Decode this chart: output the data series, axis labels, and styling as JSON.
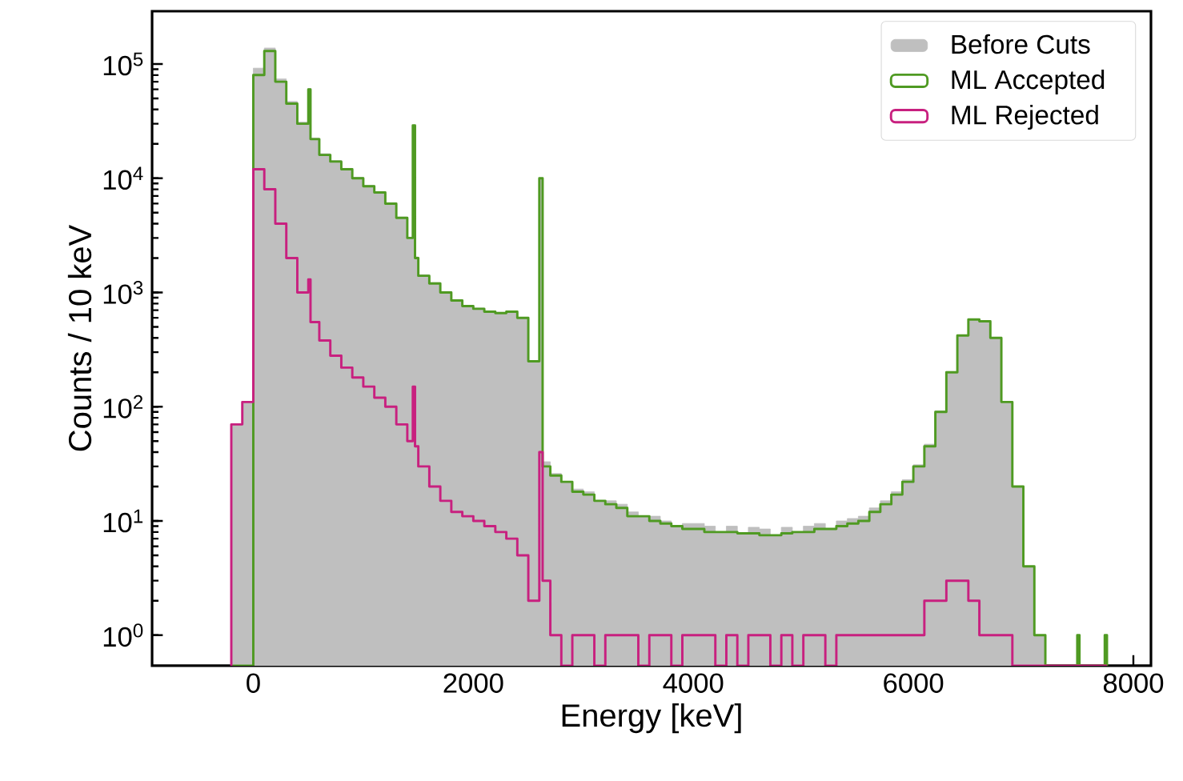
{
  "chart_data": {
    "type": "histogram",
    "xlabel": "Energy [keV]",
    "ylabel": "Counts / 10 keV",
    "log": true,
    "legend": "top right",
    "xlim": [
      -920,
      8160
    ],
    "ylim": [
      0.54,
      290000
    ],
    "xticks": [
      0,
      2000,
      4000,
      6000,
      8000
    ],
    "yticks": [
      {
        "value": 1,
        "label": "10$^{0}$"
      },
      {
        "value": 10,
        "label": "10$^{1}$"
      },
      {
        "value": 100,
        "label": "10$^{2}$"
      },
      {
        "value": 1000,
        "label": "10$^{3}$"
      },
      {
        "value": 10000,
        "label": "10$^{4}$"
      },
      {
        "value": 100000,
        "label": "10$^{5}$"
      }
    ],
    "bins": [
      -200,
      -100,
      0,
      100,
      200,
      300,
      400,
      500,
      520,
      600,
      700,
      800,
      900,
      1000,
      1100,
      1200,
      1300,
      1400,
      1450,
      1470,
      1500,
      1600,
      1700,
      1800,
      1900,
      2000,
      2100,
      2200,
      2300,
      2400,
      2500,
      2600,
      2630,
      2700,
      2800,
      2900,
      3000,
      3100,
      3200,
      3300,
      3400,
      3500,
      3600,
      3700,
      3800,
      3900,
      4000,
      4100,
      4200,
      4300,
      4400,
      4500,
      4600,
      4700,
      4800,
      4900,
      5000,
      5100,
      5200,
      5300,
      5400,
      5500,
      5600,
      5700,
      5800,
      5900,
      6000,
      6100,
      6200,
      6300,
      6400,
      6500,
      6600,
      6700,
      6800,
      6900,
      7000,
      7100,
      7200,
      7490,
      7510,
      7740,
      7760
    ],
    "series": [
      {
        "name": "Before Cuts",
        "color": "#bfbfbf",
        "values": [
          70,
          110,
          92000,
          138000,
          74000,
          47000,
          31000,
          61000,
          22500,
          16400,
          14300,
          12200,
          10200,
          8650,
          7600,
          6100,
          4570,
          3050,
          29000,
          2050,
          1430,
          1220,
          1020,
          860,
          770,
          730,
          690,
          670,
          690,
          600,
          250,
          10000,
          33,
          26,
          22,
          19,
          18,
          15,
          15,
          14,
          12,
          11,
          11,
          10,
          9,
          9.5,
          9.5,
          9,
          8,
          9,
          7.8,
          8.8,
          8.5,
          7.5,
          8.8,
          8,
          9,
          9.5,
          8.5,
          10,
          10.5,
          11,
          13,
          15,
          18,
          23,
          31,
          47,
          92,
          203,
          423,
          582,
          561,
          401,
          111,
          20,
          4,
          1,
          null,
          1,
          null,
          1
        ]
      },
      {
        "name": "ML Accepted",
        "color": "#4f9a22",
        "values": [
          null,
          null,
          80000,
          130000,
          70000,
          45000,
          30000,
          60000,
          22000,
          16000,
          14000,
          12000,
          10000,
          8500,
          7500,
          6000,
          4500,
          3000,
          29000,
          2000,
          1400,
          1200,
          1000,
          850,
          760,
          720,
          680,
          660,
          680,
          600,
          250,
          10000,
          30,
          25,
          22,
          18,
          17,
          15,
          14,
          13,
          11,
          11,
          10,
          9.5,
          9,
          8.5,
          8.5,
          8,
          8,
          8,
          7.8,
          7.8,
          7.5,
          7.5,
          7.8,
          8,
          8,
          8.5,
          8.5,
          9,
          9.5,
          10,
          12,
          14,
          17,
          22,
          30,
          45,
          90,
          200,
          420,
          580,
          560,
          400,
          110,
          20,
          4,
          1,
          null,
          1,
          null,
          1
        ]
      },
      {
        "name": "ML Rejected",
        "color": "#c8207f",
        "values": [
          70,
          110,
          12000,
          8000,
          4000,
          2000,
          1000,
          1300,
          550,
          380,
          280,
          220,
          180,
          150,
          120,
          100,
          70,
          50,
          150,
          45,
          30,
          20,
          15,
          12,
          11,
          10,
          9,
          8,
          7,
          5,
          2,
          40,
          3,
          1,
          null,
          1,
          1,
          null,
          1,
          1,
          1,
          null,
          1,
          1,
          null,
          1,
          1,
          1,
          null,
          1,
          null,
          1,
          1,
          null,
          1,
          null,
          1,
          1,
          null,
          1,
          1,
          1,
          1,
          1,
          1,
          1,
          1,
          2,
          2,
          3,
          3,
          2,
          1,
          1,
          1,
          null,
          null,
          null,
          null,
          null,
          null,
          null
        ]
      }
    ]
  }
}
